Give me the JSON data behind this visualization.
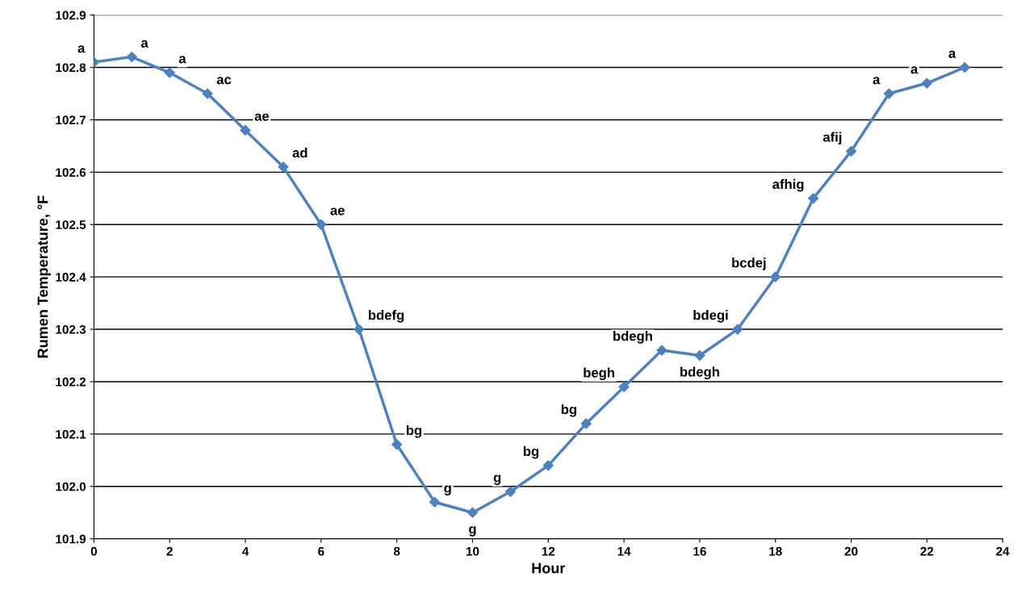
{
  "chart_data": {
    "type": "line",
    "xlabel": "Hour",
    "ylabel": "Rumen Temperature, °F",
    "x": [
      0,
      1,
      2,
      3,
      4,
      5,
      6,
      7,
      8,
      9,
      10,
      11,
      12,
      13,
      14,
      15,
      16,
      17,
      18,
      19,
      20,
      21,
      22,
      23
    ],
    "series": [
      {
        "color": "#4f81bd",
        "values": [
          102.81,
          102.82,
          102.79,
          102.75,
          102.68,
          102.61,
          102.5,
          102.3,
          102.08,
          101.97,
          101.95,
          101.99,
          102.04,
          102.12,
          102.19,
          102.26,
          102.25,
          102.3,
          102.4,
          102.55,
          102.64,
          102.75,
          102.77,
          102.8
        ]
      }
    ],
    "xlim": [
      0,
      24
    ],
    "xticks": [
      0,
      2,
      4,
      6,
      8,
      10,
      12,
      14,
      16,
      18,
      20,
      22,
      24
    ],
    "ylim": [
      101.9,
      102.9
    ],
    "yticks": [
      {
        "value": 101.9,
        "label": "101.9"
      },
      {
        "value": 102.0,
        "label": "102.0"
      },
      {
        "value": 102.1,
        "label": "102.1"
      },
      {
        "value": 102.2,
        "label": "102.2"
      },
      {
        "value": 102.3,
        "label": "102.3"
      },
      {
        "value": 102.4,
        "label": "102.4"
      },
      {
        "value": 102.5,
        "label": "102.5"
      },
      {
        "value": 102.6,
        "label": "102.6"
      },
      {
        "value": 102.7,
        "label": "102.7"
      },
      {
        "value": 102.8,
        "label": "102.8"
      },
      {
        "value": 102.9,
        "label": "102.9"
      }
    ],
    "grid": "y",
    "marker": "diamond",
    "line_style": "solid",
    "legend": false,
    "annotations": [
      {
        "text": "a",
        "x": 0,
        "y": 102.81
      },
      {
        "text": "a",
        "x": 1,
        "y": 102.82
      },
      {
        "text": "a",
        "x": 2,
        "y": 102.79
      },
      {
        "text": "ac",
        "x": 3,
        "y": 102.75
      },
      {
        "text": "ae",
        "x": 4,
        "y": 102.68
      },
      {
        "text": "ad",
        "x": 5,
        "y": 102.61
      },
      {
        "text": "ae",
        "x": 6,
        "y": 102.5
      },
      {
        "text": "bdefg",
        "x": 7,
        "y": 102.3
      },
      {
        "text": "bg",
        "x": 8,
        "y": 102.08
      },
      {
        "text": "g",
        "x": 9,
        "y": 101.97
      },
      {
        "text": "g",
        "x": 10,
        "y": 101.95
      },
      {
        "text": "g",
        "x": 11,
        "y": 101.99
      },
      {
        "text": "bg",
        "x": 12,
        "y": 102.04
      },
      {
        "text": "bg",
        "x": 13,
        "y": 102.12
      },
      {
        "text": "begh",
        "x": 14,
        "y": 102.19
      },
      {
        "text": "bdegh",
        "x": 15,
        "y": 102.26
      },
      {
        "text": "bdegh",
        "x": 16,
        "y": 102.25
      },
      {
        "text": "bdegi",
        "x": 17,
        "y": 102.3
      },
      {
        "text": "bcdej",
        "x": 18,
        "y": 102.4
      },
      {
        "text": "afhig",
        "x": 19,
        "y": 102.55
      },
      {
        "text": "afij",
        "x": 20,
        "y": 102.64
      },
      {
        "text": "a",
        "x": 21,
        "y": 102.75
      },
      {
        "text": "a",
        "x": 22,
        "y": 102.77
      },
      {
        "text": "a",
        "x": 23,
        "y": 102.8
      }
    ]
  }
}
